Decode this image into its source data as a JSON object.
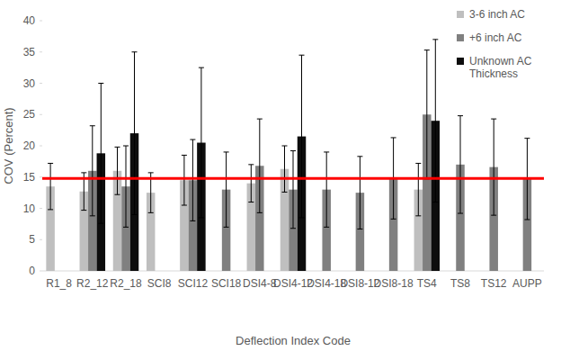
{
  "chart_data": {
    "type": "bar",
    "categories": [
      "R1_8",
      "R2_12",
      "R2_18",
      "SCI8",
      "SCI12",
      "SCI18",
      "DSI4-8",
      "DSI4-12",
      "DSI4-18",
      "DSI8-12",
      "DSI8-18",
      "TS4",
      "TS8",
      "TS12",
      "AUPP"
    ],
    "series": [
      {
        "name": "3-6 inch AC",
        "color": "#bfbfbf",
        "values": [
          13.5,
          12.7,
          16,
          12.5,
          14.5,
          null,
          14,
          16.3,
          null,
          null,
          null,
          13,
          null,
          null,
          null
        ],
        "errors": [
          3.7,
          3,
          3.8,
          3.2,
          4,
          null,
          3,
          3.7,
          null,
          null,
          null,
          4.2,
          null,
          null,
          null
        ]
      },
      {
        "name": "+6 inch AC",
        "color": "#808080",
        "values": [
          null,
          16,
          13.5,
          null,
          14.5,
          13,
          16.8,
          13,
          13,
          12.5,
          14.8,
          25,
          17,
          16.6,
          14.7
        ],
        "errors": [
          null,
          7.2,
          6.5,
          null,
          6.5,
          6,
          7.5,
          6.2,
          6,
          5.8,
          6.5,
          10.3,
          7.8,
          7.7,
          6.5
        ]
      },
      {
        "name": "Unknown AC Thickness",
        "color": "#0d0d0d",
        "values": [
          null,
          18.8,
          22,
          null,
          20.5,
          null,
          null,
          21.5,
          null,
          null,
          null,
          24,
          null,
          null,
          null
        ],
        "errors": [
          null,
          11.2,
          13,
          null,
          12,
          null,
          null,
          13,
          null,
          null,
          null,
          13,
          null,
          null,
          null
        ]
      }
    ],
    "x_label": "Deflection Index Code",
    "y_label": "COV (Percent)",
    "ylim": [
      0,
      40
    ],
    "yticks": [
      0,
      5,
      10,
      15,
      20,
      25,
      30,
      35,
      40
    ],
    "reference_line": 14.8,
    "legend": "top-right",
    "grid": false
  }
}
